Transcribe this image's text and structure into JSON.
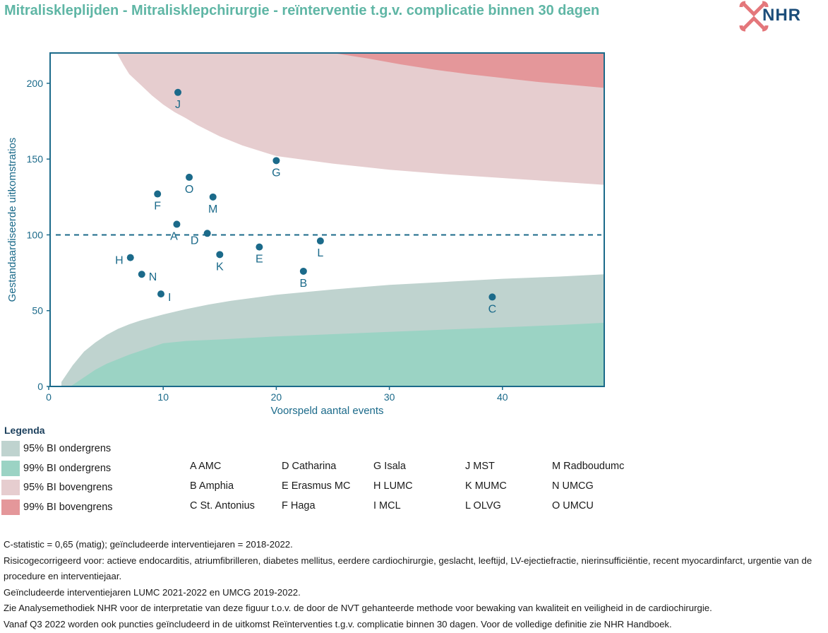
{
  "header": {
    "title": "Mitraliskleplijden - Mitralisklepchirurgie - reïnterventie t.g.v. complicatie binnen 30 dagen",
    "logo_text": "NHR"
  },
  "chart_data": {
    "type": "scatter",
    "xlabel": "Voorspeld aantal events",
    "ylabel": "Gestandaardiseerde uitkomstratios",
    "xlim": [
      0,
      49
    ],
    "ylim": [
      0,
      220
    ],
    "xticks": [
      0,
      10,
      20,
      30,
      40
    ],
    "yticks": [
      0,
      50,
      100,
      150,
      200
    ],
    "reference_line": 100,
    "grid": false,
    "points": [
      {
        "label": "A",
        "x": 11.2,
        "y": 107
      },
      {
        "label": "B",
        "x": 22.4,
        "y": 76
      },
      {
        "label": "C",
        "x": 39.1,
        "y": 59
      },
      {
        "label": "D",
        "x": 13.9,
        "y": 101
      },
      {
        "label": "E",
        "x": 18.5,
        "y": 92
      },
      {
        "label": "F",
        "x": 9.5,
        "y": 127
      },
      {
        "label": "G",
        "x": 20.0,
        "y": 149
      },
      {
        "label": "H",
        "x": 7.1,
        "y": 85
      },
      {
        "label": "I",
        "x": 9.8,
        "y": 61
      },
      {
        "label": "J",
        "x": 11.3,
        "y": 194
      },
      {
        "label": "K",
        "x": 15.0,
        "y": 87
      },
      {
        "label": "L",
        "x": 23.9,
        "y": 96
      },
      {
        "label": "M",
        "x": 14.4,
        "y": 125
      },
      {
        "label": "N",
        "x": 8.1,
        "y": 74
      },
      {
        "label": "O",
        "x": 12.3,
        "y": 138
      }
    ],
    "bands": {
      "lower_95": {
        "x": [
          1,
          2,
          3,
          4,
          5,
          6,
          7,
          8,
          9,
          10,
          12,
          14,
          16,
          20,
          25,
          30,
          35,
          40,
          45,
          49
        ],
        "y": [
          3,
          14,
          23,
          29,
          34,
          38,
          41,
          43.5,
          45.5,
          47.5,
          51,
          54,
          56.5,
          60.5,
          64,
          67,
          69,
          71,
          72.5,
          74
        ]
      },
      "lower_99": {
        "x": [
          1.8,
          3,
          4,
          5,
          6,
          7,
          8,
          9,
          10,
          12,
          15,
          20,
          25,
          30,
          35,
          40,
          45,
          49
        ],
        "y": [
          0,
          6,
          11,
          15,
          18,
          21,
          23.5,
          26,
          28.5,
          30,
          31,
          33,
          34.5,
          36,
          37.5,
          39,
          40.5,
          42
        ]
      },
      "upper_95": {
        "x": [
          5.9,
          6.5,
          7,
          8,
          9,
          10,
          11,
          12,
          13,
          15,
          17,
          20,
          25,
          30,
          35,
          40,
          45,
          49
        ],
        "y": [
          220,
          212,
          206,
          199,
          192,
          186,
          181,
          177,
          172.5,
          165,
          159,
          152,
          147,
          143,
          140,
          137.5,
          135,
          133
        ]
      },
      "upper_99": {
        "x": [
          25,
          28,
          31,
          34,
          37,
          40,
          43,
          46,
          49
        ],
        "y": [
          220,
          216.5,
          212.5,
          209,
          206,
          203.5,
          201,
          199,
          197
        ]
      }
    },
    "colors": {
      "axis": "#1b6a8a",
      "tick_text": "#1b6a8a",
      "point": "#1b6a8a",
      "lower_95": "#bfd3cf",
      "lower_99": "#9bd3c4",
      "upper_95": "#e6cdcf",
      "upper_99": "#e4979a"
    }
  },
  "legend": {
    "title": "Legenda",
    "items": [
      {
        "label": "95% BI ondergrens",
        "color": "#bfd3cf"
      },
      {
        "label": "99% BI ondergrens",
        "color": "#9bd3c4"
      },
      {
        "label": "95% BI bovengrens",
        "color": "#e6cdcf"
      },
      {
        "label": "99% BI bovengrens",
        "color": "#e4979a"
      }
    ],
    "hospitals": [
      [
        "A AMC",
        "B Amphia",
        "C St. Antonius"
      ],
      [
        "D Catharina",
        "E Erasmus MC",
        "F Haga"
      ],
      [
        "G Isala",
        "H LUMC",
        "I MCL"
      ],
      [
        "J MST",
        "K MUMC",
        "L OLVG"
      ],
      [
        "M Radboudumc",
        "N UMCG",
        "O UMCU"
      ]
    ]
  },
  "notes": [
    "C-statistic =  0,65 (matig); geïncludeerde interventiejaren = 2018-2022.",
    "Risicogecorrigeerd voor: actieve endocarditis, atriumfibrilleren, diabetes mellitus, eerdere cardiochirurgie, geslacht, leeftijd, LV-ejectiefractie, nierinsufficiëntie, recent myocardinfarct, urgentie van de procedure en interventiejaar.",
    "Geïncludeerde interventiejaren LUMC 2021-2022 en UMCG 2019-2022.",
    "Zie Analysemethodiek NHR voor de interpretatie van deze figuur t.o.v. de door de NVT gehanteerde methode voor bewaking van kwaliteit en veiligheid in de cardiochirurgie.",
    "Vanaf Q3 2022 worden ook puncties geïncludeerd in de uitkomst Reïnterventies t.g.v. complicatie binnen 30 dagen. Voor de volledige definitie zie NHR Handboek."
  ]
}
